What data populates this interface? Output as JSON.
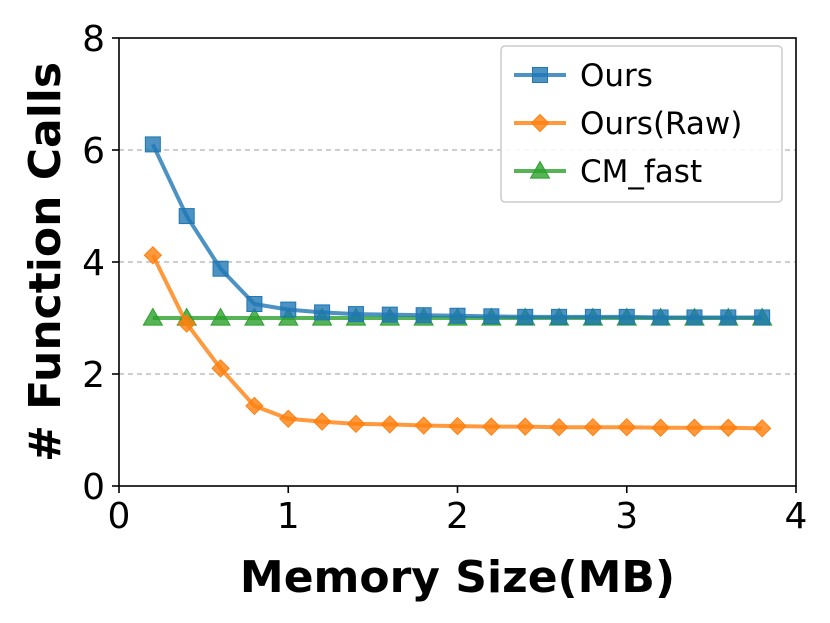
{
  "chart_data": {
    "type": "line",
    "title": "",
    "xlabel": "Memory Size(MB)",
    "ylabel": "# Function Calls",
    "xlim": [
      0,
      4
    ],
    "ylim": [
      0,
      8
    ],
    "xticks": [
      0,
      1,
      2,
      3,
      4
    ],
    "yticks": [
      0,
      2,
      4,
      6,
      8
    ],
    "x_tick_labels": [
      "0",
      "1",
      "2",
      "3",
      "4"
    ],
    "y_tick_labels": [
      "0",
      "2",
      "4",
      "6",
      "8"
    ],
    "grid": "horizontal dashed",
    "legend_position": "top-right",
    "x": [
      0.2,
      0.4,
      0.6,
      0.8,
      1.0,
      1.2,
      1.4,
      1.6,
      1.8,
      2.0,
      2.2,
      2.4,
      2.6,
      2.8,
      3.0,
      3.2,
      3.4,
      3.6,
      3.8
    ],
    "series": [
      {
        "name": "Ours",
        "color": "#1f77b4",
        "marker": "square",
        "values": [
          6.1,
          4.82,
          3.88,
          3.25,
          3.15,
          3.1,
          3.07,
          3.06,
          3.05,
          3.04,
          3.03,
          3.02,
          3.02,
          3.02,
          3.02,
          3.01,
          3.01,
          3.01,
          3.01
        ]
      },
      {
        "name": "Ours(Raw)",
        "color": "#ff7f0e",
        "marker": "diamond",
        "values": [
          4.12,
          2.9,
          2.1,
          1.43,
          1.2,
          1.15,
          1.11,
          1.1,
          1.08,
          1.07,
          1.06,
          1.06,
          1.05,
          1.05,
          1.05,
          1.04,
          1.04,
          1.04,
          1.03
        ]
      },
      {
        "name": "CM_fast",
        "color": "#2ca02c",
        "marker": "triangle",
        "values": [
          3.0,
          3.0,
          3.0,
          3.0,
          3.0,
          3.0,
          3.0,
          3.0,
          3.0,
          3.0,
          3.0,
          3.0,
          3.0,
          3.0,
          3.0,
          3.0,
          3.0,
          3.0,
          3.0
        ]
      }
    ]
  }
}
